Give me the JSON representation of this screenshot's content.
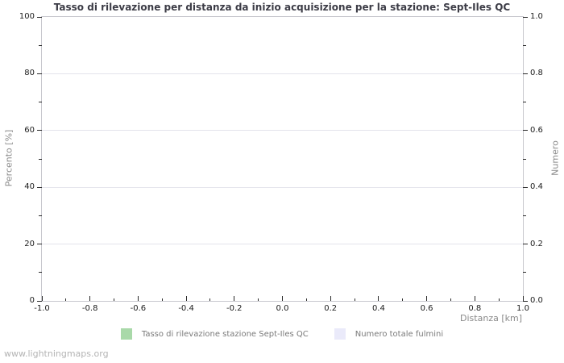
{
  "title": "Tasso di rilevazione per distanza da inizio acquisizione per la stazione: Sept-Iles QC",
  "watermark": "www.lightningmaps.org",
  "axes": {
    "left": {
      "label": "Percento  [%]",
      "ticks": [
        "0",
        "20",
        "40",
        "60",
        "80",
        "100"
      ]
    },
    "right": {
      "label": "Numero",
      "ticks": [
        "0.0",
        "0.2",
        "0.4",
        "0.6",
        "0.8",
        "1.0"
      ]
    },
    "bottom": {
      "label": "Distanza  [km]",
      "ticks": [
        "-1.0",
        "-0.8",
        "-0.6",
        "-0.4",
        "-0.2",
        "0.0",
        "0.2",
        "0.4",
        "0.6",
        "0.8",
        "1.0"
      ]
    }
  },
  "legend": [
    {
      "label": "Tasso di rilevazione stazione Sept-Iles QC",
      "color": "#a9d9a9"
    },
    {
      "label": "Numero totale fulmini",
      "color": "#eaeafa"
    }
  ],
  "colors": {
    "title": "#3c3c46",
    "tick_labels": "#1c1c1c",
    "axis_labels": "#8a8a8a",
    "grid": "#e4e4ec",
    "border": "#c8c8ce",
    "series_green": "#a9d9a9",
    "series_lavender": "#eaeafa"
  },
  "chart_data": {
    "type": "bar",
    "title": "Tasso di rilevazione per distanza da inizio acquisizione per la stazione: Sept-Iles QC",
    "xlabel": "Distanza [km]",
    "ylabel": "Percento [%]",
    "y2label": "Numero",
    "xlim": [
      -1.0,
      1.0
    ],
    "ylim": [
      0,
      100
    ],
    "y2lim": [
      0.0,
      1.0
    ],
    "x_ticks": [
      -1.0,
      -0.8,
      -0.6,
      -0.4,
      -0.2,
      0.0,
      0.2,
      0.4,
      0.6,
      0.8,
      1.0
    ],
    "y_ticks": [
      0,
      20,
      40,
      60,
      80,
      100
    ],
    "y2_ticks": [
      0.0,
      0.2,
      0.4,
      0.6,
      0.8,
      1.0
    ],
    "grid": true,
    "legend_position": "bottom",
    "x": [],
    "series": [
      {
        "name": "Tasso di rilevazione stazione Sept-Iles QC",
        "axis": "left",
        "color": "#a9d9a9",
        "values": []
      },
      {
        "name": "Numero totale fulmini",
        "axis": "right",
        "color": "#eaeafa",
        "values": []
      }
    ]
  }
}
